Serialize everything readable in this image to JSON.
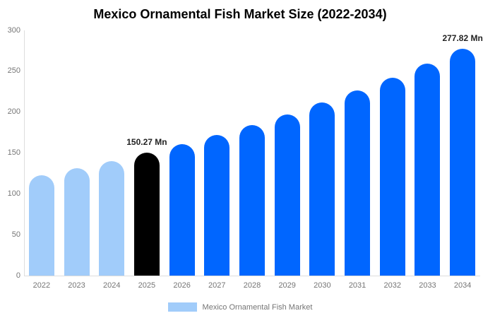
{
  "title": "Mexico Ornamental Fish Market Size (2022-2034)",
  "chart_data": {
    "type": "bar",
    "title": "Mexico Ornamental Fish Market Size (2022-2034)",
    "categories": [
      "2022",
      "2023",
      "2024",
      "2025",
      "2026",
      "2027",
      "2028",
      "2029",
      "2030",
      "2031",
      "2032",
      "2033",
      "2034"
    ],
    "values": [
      122.4,
      131.1,
      140.4,
      150.27,
      160.9,
      172.3,
      184.5,
      197.5,
      211.5,
      226.4,
      242.4,
      259.6,
      277.82
    ],
    "bar_colors": [
      "#A1CCFA",
      "#A1CCFA",
      "#A1CCFA",
      "#000000",
      "#0066FF",
      "#0066FF",
      "#0066FF",
      "#0066FF",
      "#0066FF",
      "#0066FF",
      "#0066FF",
      "#0066FF",
      "#0066FF"
    ],
    "annotations": [
      {
        "category": "2025",
        "text": "150.27 Mn"
      },
      {
        "category": "2034",
        "text": "277.82 Mn"
      }
    ],
    "ylim": [
      0,
      300
    ],
    "yticks": [
      0,
      50,
      100,
      150,
      200,
      250,
      300
    ],
    "xlabel": "",
    "ylabel": "",
    "grid": false,
    "legend": {
      "position": "bottom",
      "label": "Mexico Ornamental Fish Market",
      "swatch_color": "#A1CCFA"
    },
    "colors": {
      "historical": "#A1CCFA",
      "base_year": "#000000",
      "forecast": "#0066FF",
      "axis_line": "#DDDDDD",
      "tick_text": "#757575",
      "annotation_text": "#222222"
    }
  }
}
